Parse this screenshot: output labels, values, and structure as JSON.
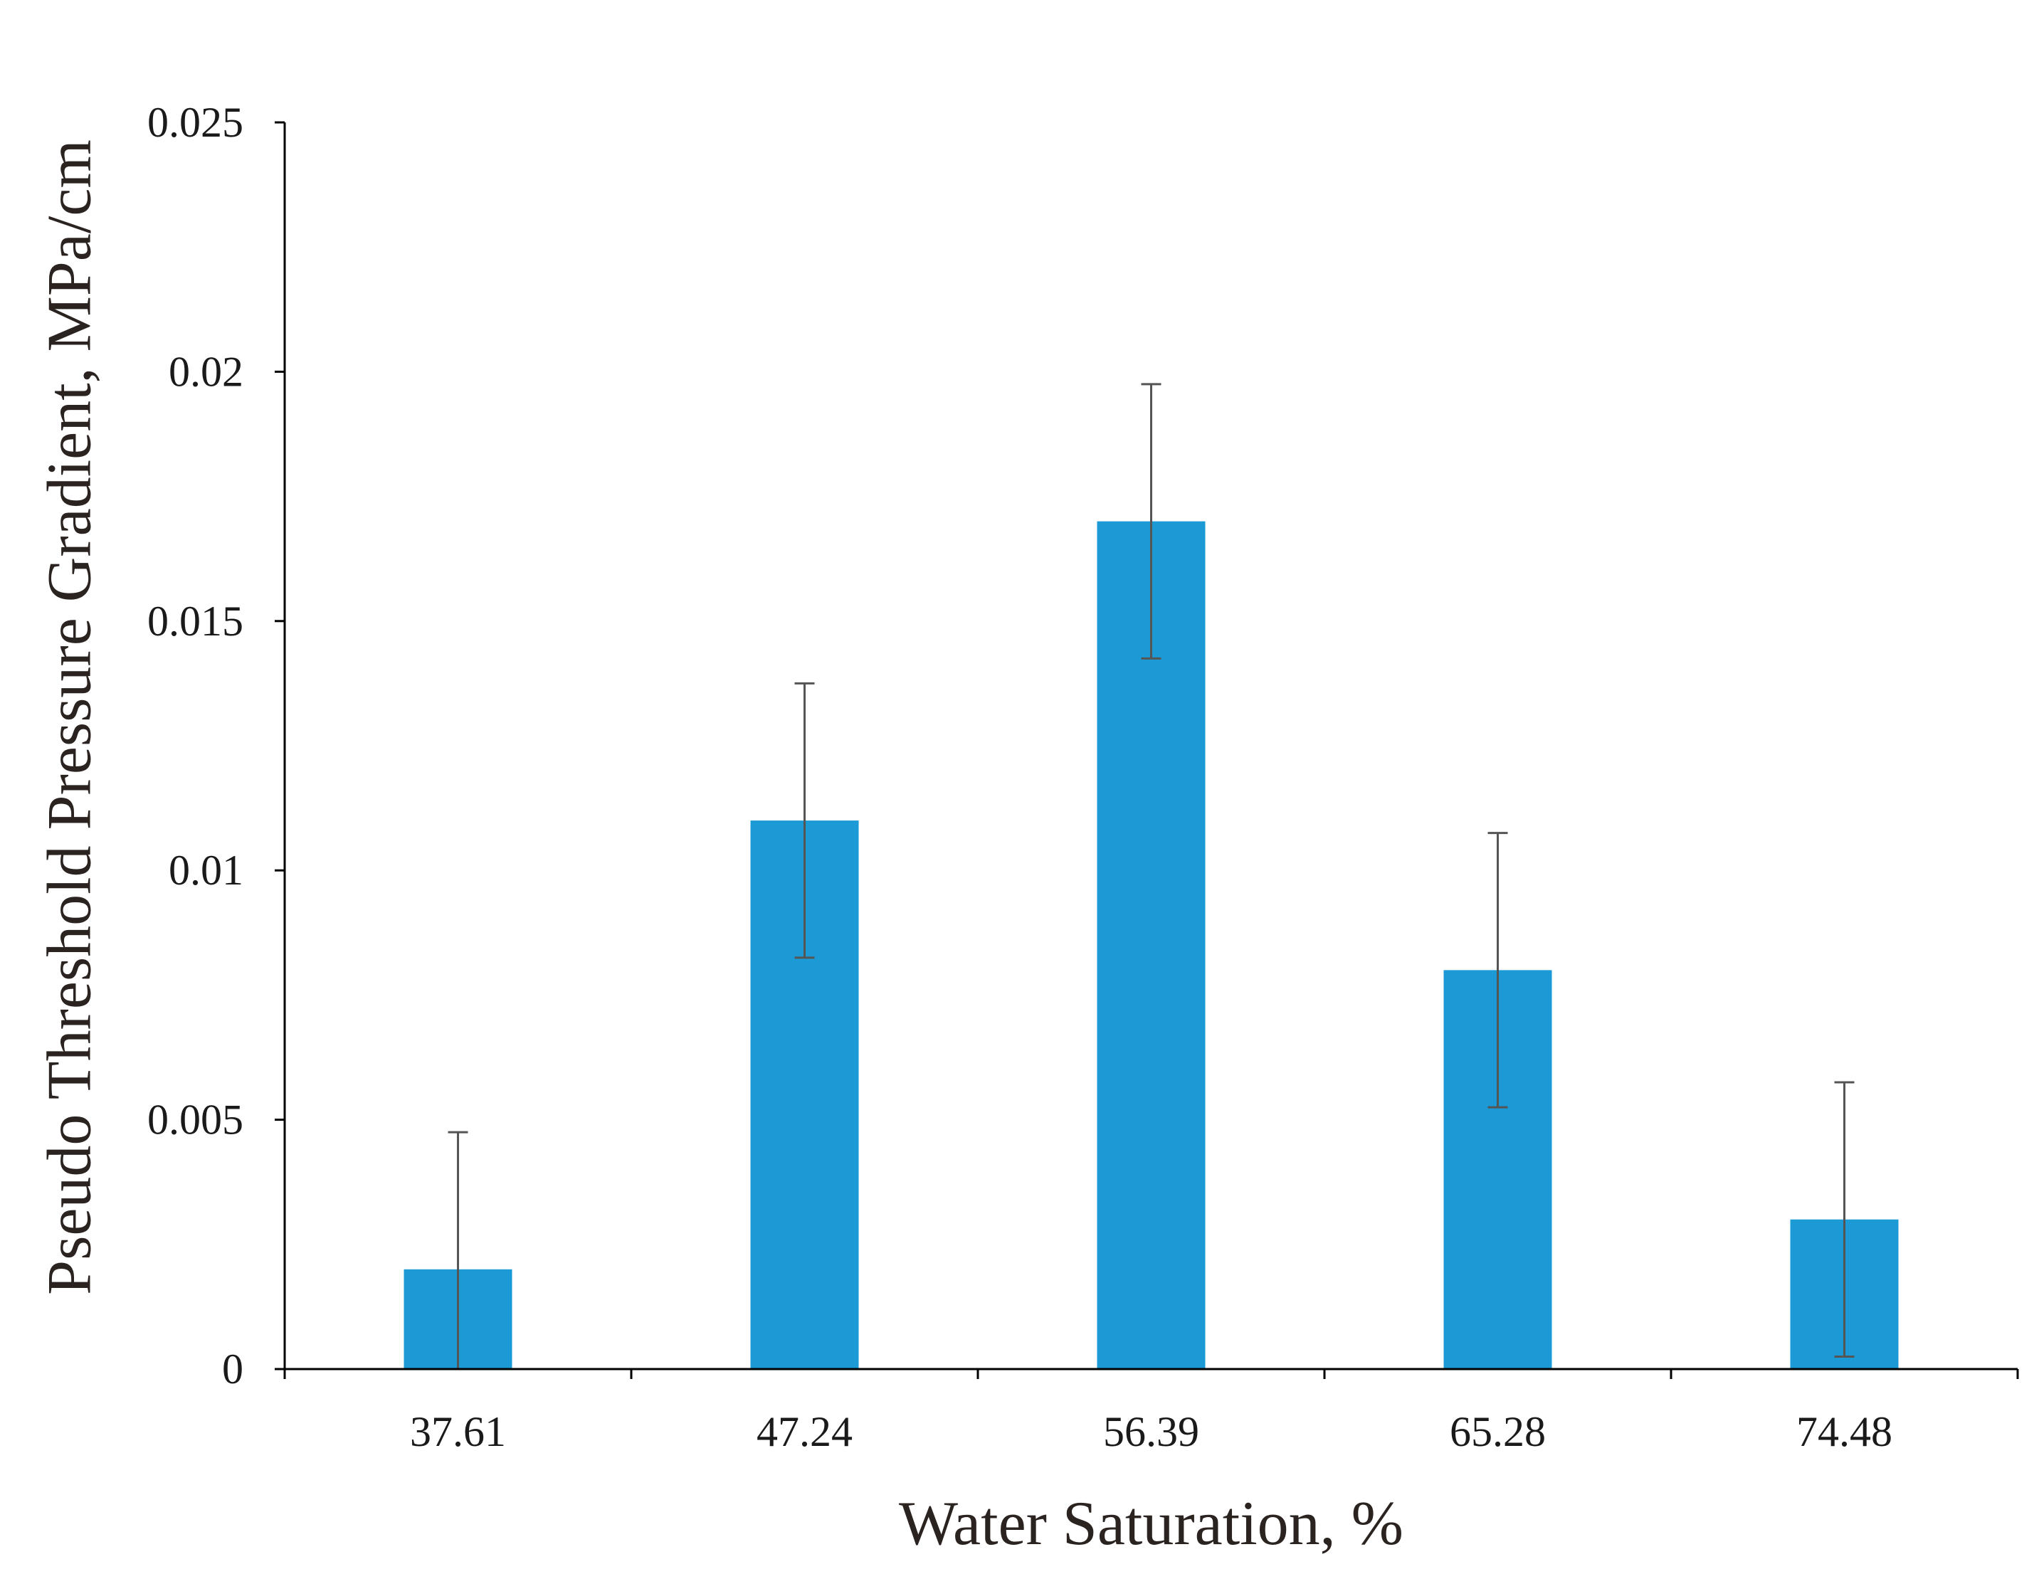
{
  "chart_data": {
    "type": "bar",
    "title": "",
    "xlabel": "Water Saturation, %",
    "ylabel": "Pseudo Threshold Pressure Gradient, MPa/cm",
    "categories": [
      "37.61",
      "47.24",
      "56.39",
      "65.28",
      "74.48"
    ],
    "series": [
      {
        "name": "Pseudo Threshold Pressure Gradient",
        "values": [
          0.002,
          0.011,
          0.017,
          0.008,
          0.003
        ],
        "error_upper": [
          0.00275,
          0.00275,
          0.00275,
          0.00275,
          0.00275
        ],
        "error_lower": [
          0.00275,
          0.00275,
          0.00275,
          0.00275,
          0.00275
        ]
      }
    ],
    "ylim": [
      0,
      0.025
    ],
    "yticks": [
      "0",
      "0.005",
      "0.01",
      "0.015",
      "0.02",
      "0.025"
    ],
    "grid": false,
    "legend": "none",
    "bar_color": "#1B9AD6"
  }
}
